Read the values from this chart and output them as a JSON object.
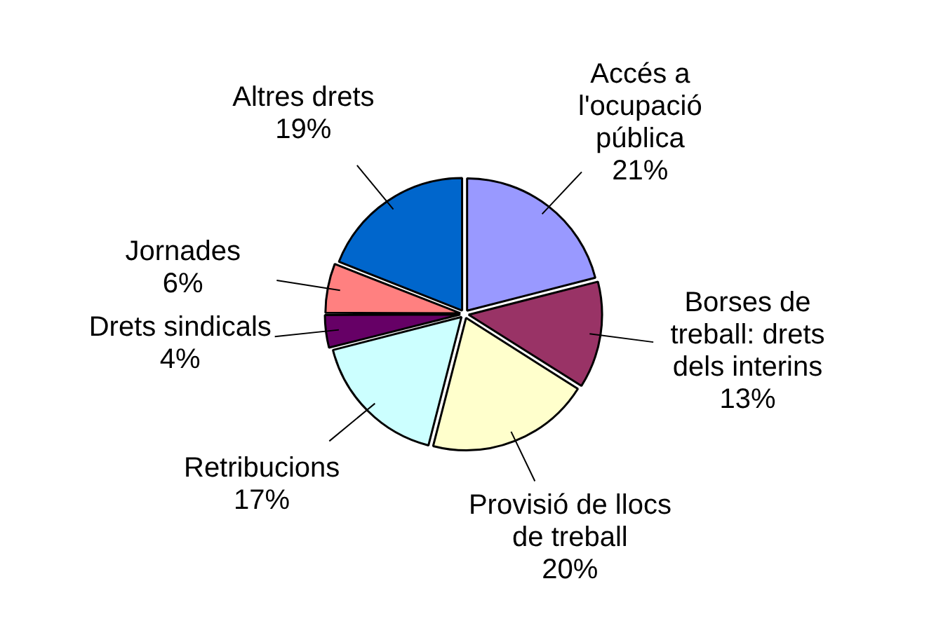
{
  "chart_data": {
    "type": "pie",
    "categories": [
      "Accés a l'ocupació pública",
      "Borses de treball: drets dels interins",
      "Provisió de llocs de treball",
      "Retribucions",
      "Drets sindicals",
      "Jornades",
      "Altres drets"
    ],
    "values": [
      21,
      13,
      20,
      17,
      4,
      6,
      19
    ],
    "value_labels": [
      "21%",
      "13%",
      "20%",
      "17%",
      "4%",
      "6%",
      "19%"
    ],
    "colors": [
      "#9999ff",
      "#993366",
      "#ffffcc",
      "#ccffff",
      "#660066",
      "#ff8080",
      "#0066cc"
    ],
    "legend": false
  }
}
